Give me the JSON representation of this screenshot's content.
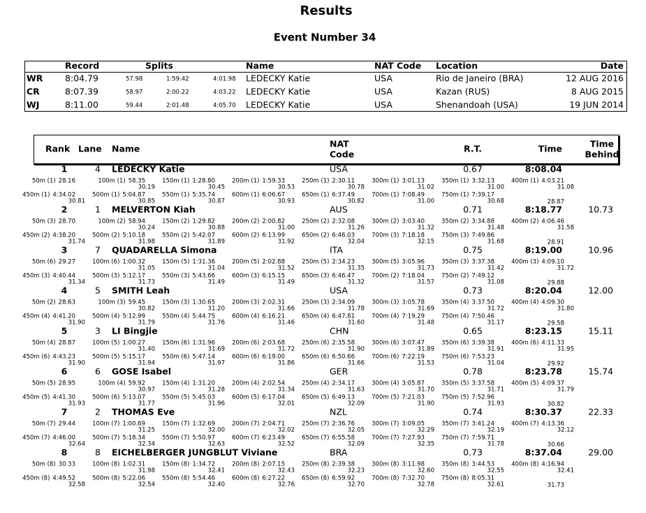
{
  "header": {
    "title": "Results",
    "subtitle": "Event Number 34"
  },
  "records": {
    "columns": [
      "Record",
      "Splits",
      "Name",
      "NAT Code",
      "Location",
      "Date"
    ],
    "rows": [
      [
        "WR",
        "8:04.79",
        "57.98",
        "1:59.42",
        "4:01.98",
        "LEDECKY Katie",
        "USA",
        "Rio de Janeiro (BRA)",
        "12 AUG 2016"
      ],
      [
        "CR",
        "8:07.39",
        "58.97",
        "2:00.22",
        "4:03.22",
        "LEDECKY Katie",
        "USA",
        "Kazan (RUS)",
        "8 AUG 2015"
      ],
      [
        "WJ",
        "8:11.00",
        "59.44",
        "2:01.48",
        "4:05.70",
        "LEDECKY Katie",
        "USA",
        "Shenandoah (USA)",
        "19 JUN 2014"
      ]
    ]
  },
  "results": {
    "columns": {
      "rank": "Rank",
      "lane": "Lane",
      "name": "Name",
      "nat": [
        "NAT",
        "Code"
      ],
      "rt": "R.T.",
      "time": "Time",
      "behind": [
        "Time",
        "Behind"
      ]
    },
    "rows": [
      {
        "rank": "1",
        "lane": "4",
        "name": "LEDECKY Katie",
        "nat": "USA",
        "rt": "0.67",
        "time": "8:08.04",
        "splits": [
          [
            "50m (1)",
            "28.16"
          ],
          [
            "100m (1)",
            "58.35",
            "30.19"
          ],
          [
            "150m (1)",
            "1:28.80",
            "30.45"
          ],
          [
            "200m (1)",
            "1:59.33",
            "30.53"
          ],
          [
            "250m (1)",
            "2:30.11",
            "30.78"
          ],
          [
            "300m (1)",
            "3:01.13",
            "31.02"
          ],
          [
            "350m (1)",
            "3:32.13",
            "31.00"
          ],
          [
            "400m (1)",
            "4:03.21",
            "31.08"
          ],
          [
            "450m (1)",
            "4:34.02",
            "30.81"
          ],
          [
            "500m (1)",
            "5:04.87",
            "30.85"
          ],
          [
            "550m (1)",
            "5:35.74",
            "30.87"
          ],
          [
            "600m (1)",
            "6:06.67",
            "30.93"
          ],
          [
            "650m (1)",
            "6:37.49",
            "30.82"
          ],
          [
            "700m (1)",
            "7:08.49",
            "31.00"
          ],
          [
            "750m (1)",
            "7:39.17",
            "30.68"
          ]
        ],
        "final_lap": "28.87"
      },
      {
        "rank": "2",
        "lane": "1",
        "name": "MELVERTON Kiah",
        "nat": "AUS",
        "rt": "0.71",
        "time": "8:18.77",
        "behind": "10.73",
        "splits": [
          [
            "50m (3)",
            "28.70"
          ],
          [
            "100m (2)",
            "58.94",
            "30.24"
          ],
          [
            "150m (2)",
            "1:29.82",
            "30.88"
          ],
          [
            "200m (2)",
            "2:00.82",
            "31.00"
          ],
          [
            "250m (2)",
            "2:32.08",
            "31.26"
          ],
          [
            "300m (2)",
            "3:03.40",
            "31.32"
          ],
          [
            "350m (2)",
            "3:34.88",
            "31.48"
          ],
          [
            "400m (2)",
            "4:06.46",
            "31.58"
          ],
          [
            "450m (2)",
            "4:38.20",
            "31.74"
          ],
          [
            "500m (2)",
            "5:10.18",
            "31.98"
          ],
          [
            "550m (2)",
            "5:42.07",
            "31.89"
          ],
          [
            "600m (2)",
            "6:13.99",
            "31.92"
          ],
          [
            "650m (2)",
            "6:46.03",
            "32.04"
          ],
          [
            "700m (3)",
            "7:18.18",
            "32.15"
          ],
          [
            "750m (3)",
            "7:49.86",
            "31.68"
          ]
        ],
        "final_lap": "28.91"
      },
      {
        "rank": "3",
        "lane": "7",
        "name": "QUADARELLA Simona",
        "nat": "ITA",
        "rt": "0.75",
        "time": "8:19.00",
        "behind": "10.96",
        "splits": [
          [
            "50m (6)",
            "29.27"
          ],
          [
            "100m (6)",
            "1:00.32",
            "31.05"
          ],
          [
            "150m (5)",
            "1:31.36",
            "31.04"
          ],
          [
            "200m (5)",
            "2:02.88",
            "31.52"
          ],
          [
            "250m (5)",
            "2:34.23",
            "31.35"
          ],
          [
            "300m (5)",
            "3:05.96",
            "31.73"
          ],
          [
            "350m (3)",
            "3:37.38",
            "31.42"
          ],
          [
            "400m (3)",
            "4:09.10",
            "31.72"
          ],
          [
            "450m (3)",
            "4:40.44",
            "31.34"
          ],
          [
            "500m (3)",
            "5:12.17",
            "31.73"
          ],
          [
            "550m (3)",
            "5:43.66",
            "31.49"
          ],
          [
            "600m (3)",
            "6:15.15",
            "31.49"
          ],
          [
            "650m (3)",
            "6:46.47",
            "31.32"
          ],
          [
            "700m (2)",
            "7:18.04",
            "31.57"
          ],
          [
            "750m (2)",
            "7:49.12",
            "31.08"
          ]
        ],
        "final_lap": "29.88"
      },
      {
        "rank": "4",
        "lane": "5",
        "name": "SMITH Leah",
        "nat": "USA",
        "rt": "0.73",
        "time": "8:20.04",
        "behind": "12.00",
        "splits": [
          [
            "50m (2)",
            "28.63"
          ],
          [
            "100m (3)",
            "59.45",
            "30.82"
          ],
          [
            "150m (3)",
            "1:30.65",
            "31.20"
          ],
          [
            "200m (3)",
            "2:02.31",
            "31.66"
          ],
          [
            "250m (3)",
            "2:34.09",
            "31.78"
          ],
          [
            "300m (3)",
            "3:05.78",
            "31.69"
          ],
          [
            "350m (4)",
            "3:37.50",
            "31.72"
          ],
          [
            "400m (4)",
            "4:09.30",
            "31.80"
          ],
          [
            "450m (4)",
            "4:41.20",
            "31.90"
          ],
          [
            "500m (4)",
            "5:12.99",
            "31.79"
          ],
          [
            "550m (4)",
            "5:44.75",
            "31.76"
          ],
          [
            "600m (4)",
            "6:16.21",
            "31.46"
          ],
          [
            "650m (4)",
            "6:47.81",
            "31.60"
          ],
          [
            "700m (4)",
            "7:19.29",
            "31.48"
          ],
          [
            "750m (4)",
            "7:50.46",
            "31.17"
          ]
        ],
        "final_lap": "29.58"
      },
      {
        "rank": "5",
        "lane": "3",
        "name": "LI Bingjie",
        "nat": "CHN",
        "rt": "0.65",
        "time": "8:23.15",
        "behind": "15.11",
        "splits": [
          [
            "50m (4)",
            "28.87"
          ],
          [
            "100m (5)",
            "1:00.27",
            "31.40"
          ],
          [
            "150m (6)",
            "1:31.96",
            "31.69"
          ],
          [
            "200m (6)",
            "2:03.68",
            "31.72"
          ],
          [
            "250m (6)",
            "2:35.58",
            "31.90"
          ],
          [
            "300m (6)",
            "3:07.47",
            "31.89"
          ],
          [
            "350m (6)",
            "3:39.38",
            "31.91"
          ],
          [
            "400m (6)",
            "4:11.33",
            "31.95"
          ],
          [
            "450m (6)",
            "4:43.23",
            "31.90"
          ],
          [
            "500m (5)",
            "5:15.17",
            "31.94"
          ],
          [
            "550m (6)",
            "5:47.14",
            "31.97"
          ],
          [
            "600m (6)",
            "6:19.00",
            "31.86"
          ],
          [
            "650m (6)",
            "6:50.66",
            "31.66"
          ],
          [
            "700m (6)",
            "7:22.19",
            "31.53"
          ],
          [
            "750m (6)",
            "7:53.23",
            "31.04"
          ]
        ],
        "final_lap": "29.92"
      },
      {
        "rank": "6",
        "lane": "6",
        "name": "GOSE Isabel",
        "nat": "GER",
        "rt": "0.78",
        "time": "8:23.78",
        "behind": "15.74",
        "splits": [
          [
            "50m (5)",
            "28.95"
          ],
          [
            "100m (4)",
            "59.92",
            "30.97"
          ],
          [
            "150m (4)",
            "1:31.20",
            "31.28"
          ],
          [
            "200m (4)",
            "2:02.54",
            "31.34"
          ],
          [
            "250m (4)",
            "2:34.17",
            "31.63"
          ],
          [
            "300m (4)",
            "3:05.87",
            "31.70"
          ],
          [
            "350m (5)",
            "3:37.58",
            "31.71"
          ],
          [
            "400m (5)",
            "4:09.37",
            "31.79"
          ],
          [
            "450m (5)",
            "4:41.30",
            "31.93"
          ],
          [
            "500m (6)",
            "5:13.07",
            "31.77"
          ],
          [
            "550m (5)",
            "5:45.03",
            "31.96"
          ],
          [
            "600m (5)",
            "6:17.04",
            "32.01"
          ],
          [
            "650m (5)",
            "6:49.13",
            "32.09"
          ],
          [
            "700m (5)",
            "7:21.03",
            "31.90"
          ],
          [
            "750m (5)",
            "7:52.96",
            "31.93"
          ]
        ],
        "final_lap": "30.82"
      },
      {
        "rank": "7",
        "lane": "2",
        "name": "THOMAS Eve",
        "nat": "NZL",
        "rt": "0.74",
        "time": "8:30.37",
        "behind": "22.33",
        "splits": [
          [
            "50m (7)",
            "29.44"
          ],
          [
            "100m (7)",
            "1:00.69",
            "31.25"
          ],
          [
            "150m (7)",
            "1:32.69",
            "32.00"
          ],
          [
            "200m (7)",
            "2:04.71",
            "32.02"
          ],
          [
            "250m (7)",
            "2:36.76",
            "32.05"
          ],
          [
            "300m (7)",
            "3:09.05",
            "32.29"
          ],
          [
            "350m (7)",
            "3:41.24",
            "32.19"
          ],
          [
            "400m (7)",
            "4:13.36",
            "32.12"
          ],
          [
            "450m (7)",
            "4:46.00",
            "32.64"
          ],
          [
            "500m (7)",
            "5:18.34",
            "32.34"
          ],
          [
            "550m (7)",
            "5:50.97",
            "32.63"
          ],
          [
            "600m (7)",
            "6:23.49",
            "32.52"
          ],
          [
            "650m (7)",
            "6:55.58",
            "32.09"
          ],
          [
            "700m (7)",
            "7:27.93",
            "32.35"
          ],
          [
            "750m (7)",
            "7:59.71",
            "31.78"
          ]
        ],
        "final_lap": "30.66"
      },
      {
        "rank": "8",
        "lane": "8",
        "name": "EICHELBERGER JUNGBLUT Viviane",
        "nat": "BRA",
        "rt": "0.73",
        "time": "8:37.04",
        "behind": "29.00",
        "splits": [
          [
            "50m (8)",
            "30.33"
          ],
          [
            "100m (8)",
            "1:02.31",
            "31.98"
          ],
          [
            "150m (8)",
            "1:34.72",
            "32.41"
          ],
          [
            "200m (8)",
            "2:07.15",
            "32.43"
          ],
          [
            "250m (8)",
            "2:39.38",
            "32.23"
          ],
          [
            "300m (8)",
            "3:11.98",
            "32.60"
          ],
          [
            "350m (8)",
            "3:44.53",
            "32.55"
          ],
          [
            "400m (8)",
            "4:16.94",
            "32.41"
          ],
          [
            "450m (8)",
            "4:49.52",
            "32.58"
          ],
          [
            "500m (8)",
            "5:22.06",
            "32.54"
          ],
          [
            "550m (8)",
            "5:54.46",
            "32.40"
          ],
          [
            "600m (8)",
            "6:27.22",
            "32.76"
          ],
          [
            "650m (8)",
            "6:59.92",
            "32.70"
          ],
          [
            "700m (8)",
            "7:32.70",
            "32.78"
          ],
          [
            "750m (8)",
            "8:05.31",
            "32.61"
          ]
        ],
        "final_lap": "31.73"
      }
    ]
  }
}
